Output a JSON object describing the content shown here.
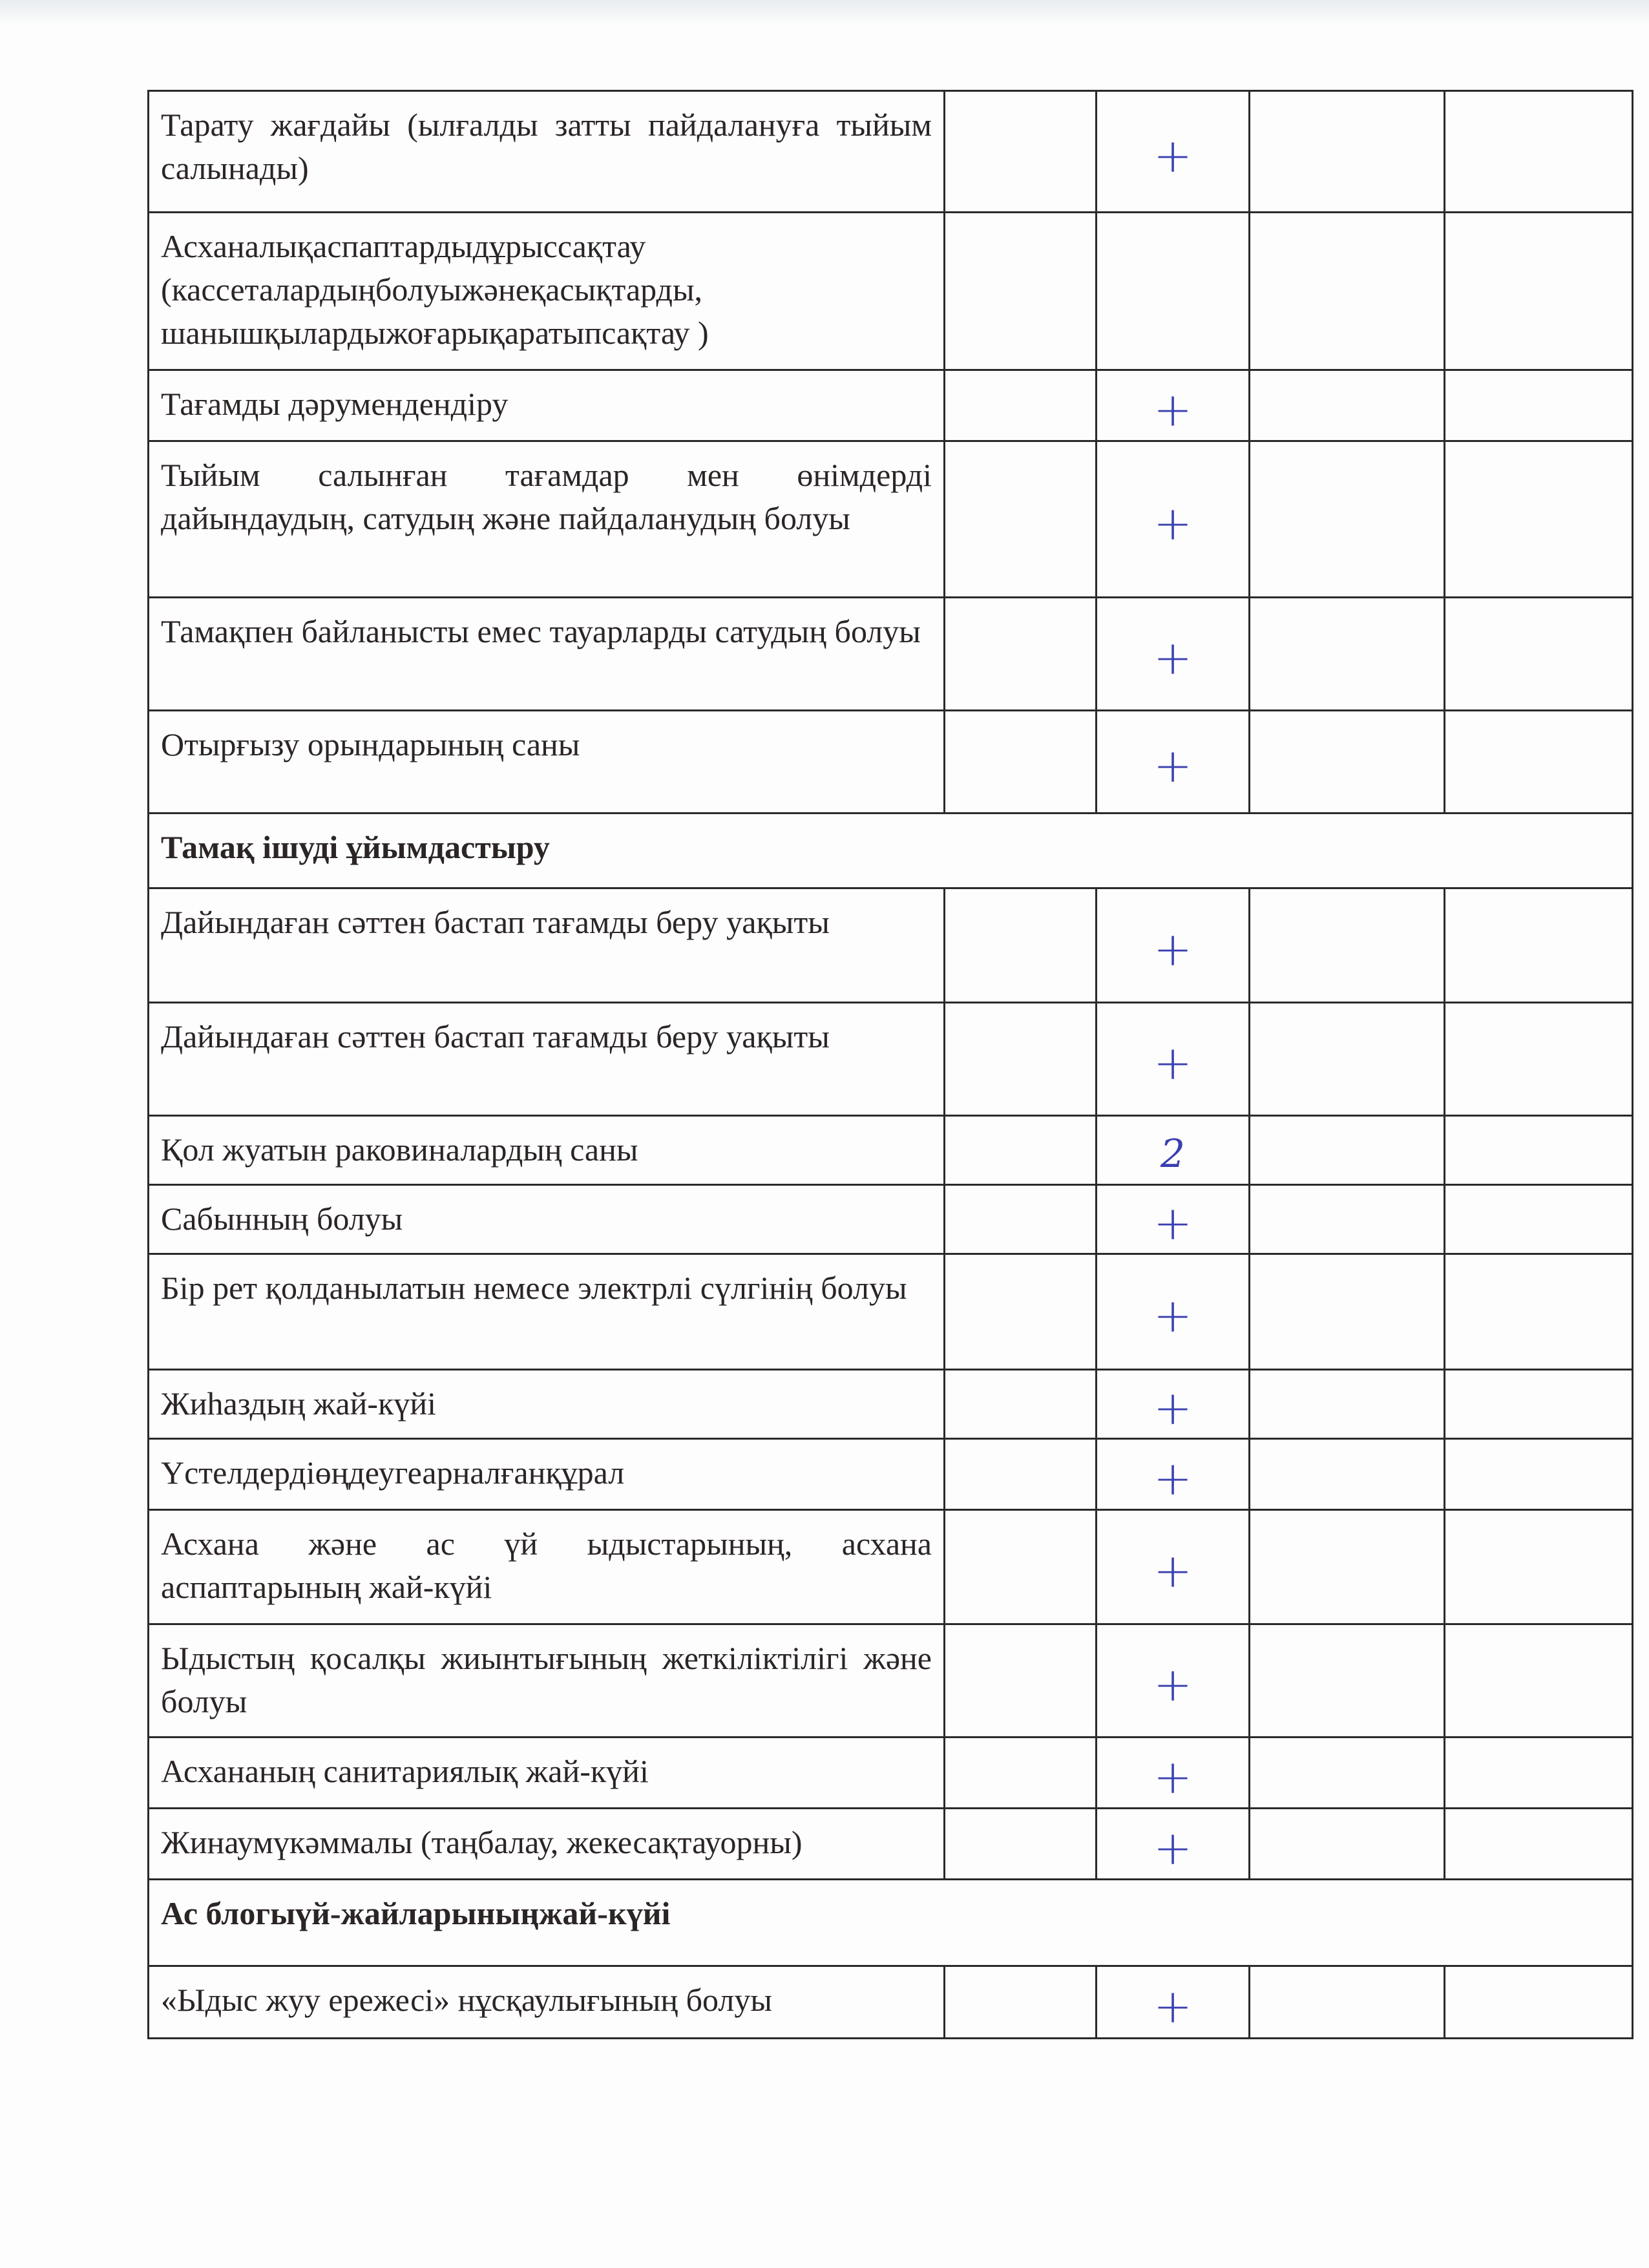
{
  "colors": {
    "ink": "#2b2525",
    "pen": "#3a3fb0"
  },
  "rows": [
    {
      "type": "item",
      "text": "Тарату жағдайы (ылғалды затты пайдалануға тыйым салынады)",
      "mark": "+"
    },
    {
      "type": "item",
      "text": "Асханалықаспаптардыдұрыссақтау (кассеталардыңболуыжәнеқасықтарды, шанышқылардыжоғарықаратыпсақтау )",
      "mark": ""
    },
    {
      "type": "item",
      "text": "Тағамды дәрумендендіру",
      "mark": "+"
    },
    {
      "type": "item",
      "text": "Тыйым салынған тағамдар мен өнімдерді дайындаудың, сатудың және пайдаланудың болуы",
      "mark": "+"
    },
    {
      "type": "item",
      "text": "Тамақпен байланысты емес тауарларды сатудың болуы",
      "mark": "+"
    },
    {
      "type": "item",
      "text": "Отырғызу орындарының саны",
      "mark": "+"
    },
    {
      "type": "section",
      "text": "Тамақ ішуді ұйымдастыру"
    },
    {
      "type": "item",
      "text": "Дайындаған сәттен бастап тағамды беру уақыты",
      "mark": "+"
    },
    {
      "type": "item",
      "text": "Дайындаған сәттен бастап тағамды беру уақыты",
      "mark": "+"
    },
    {
      "type": "item",
      "text": "Қол жуатын раковиналардың саны",
      "mark": "2"
    },
    {
      "type": "item",
      "text": "Сабынның болуы",
      "mark": "+"
    },
    {
      "type": "item",
      "text": "Бір рет қолданылатын немесе электрлі сүлгінің болуы",
      "mark": "+"
    },
    {
      "type": "item",
      "text": "Жиһаздың жай-күйі",
      "mark": "+"
    },
    {
      "type": "item",
      "text": "Үстелдердіөңдеугеарналғанқұрал",
      "mark": "+"
    },
    {
      "type": "item",
      "text": "Асхана және ас үй ыдыстарының, асхана аспаптарының жай-күйі",
      "mark": "+"
    },
    {
      "type": "item",
      "text": "Ыдыстың қосалқы жиынтығының жеткіліктілігі және болуы",
      "mark": "+"
    },
    {
      "type": "item",
      "text": "Асхананың санитариялық жай-күйі",
      "mark": "+"
    },
    {
      "type": "item",
      "text": "Жинаумүкәммалы (таңбалау, жекесақтауорны)",
      "mark": "+"
    },
    {
      "type": "section",
      "text": "Ас блогыүй-жайларыныңжай-күйі"
    },
    {
      "type": "item",
      "text": "«Ыдыс жуу ережесі» нұсқаулығының болуы",
      "mark": "+"
    }
  ]
}
